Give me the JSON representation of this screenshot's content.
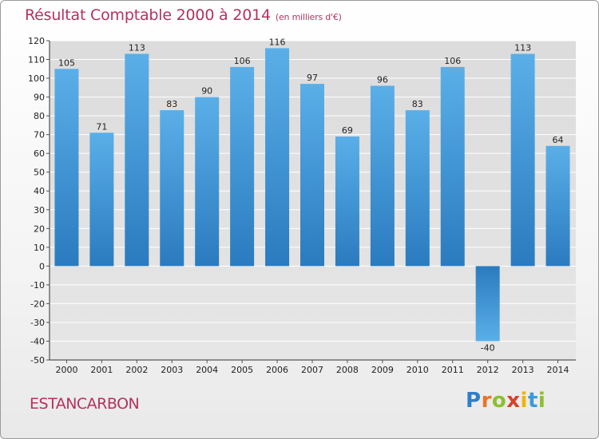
{
  "header": {
    "title": "Résultat Comptable 2000 à 2014",
    "units": "(en milliers d'€)"
  },
  "footer": {
    "commune": "ESTANCARBON",
    "logo_text": "Proxiti",
    "logo_letters": [
      "P",
      "r",
      "o",
      "x",
      "i",
      "t",
      "i"
    ]
  },
  "colors": {
    "bar_light": "#5aafe8",
    "bar_dark": "#2a7bbf",
    "title": "#b5325c",
    "grid": "#ffffff"
  },
  "chart_data": {
    "type": "bar",
    "title": "Résultat Comptable 2000 à 2014",
    "subtitle": "(en milliers d'€)",
    "xlabel": "",
    "ylabel": "",
    "categories": [
      "2000",
      "2001",
      "2002",
      "2003",
      "2004",
      "2005",
      "2006",
      "2007",
      "2008",
      "2009",
      "2010",
      "2011",
      "2012",
      "2013",
      "2014"
    ],
    "values": [
      105,
      71,
      113,
      83,
      90,
      106,
      116,
      97,
      69,
      96,
      83,
      106,
      -40,
      113,
      64
    ],
    "ylim": [
      -50,
      120
    ],
    "yticks": [
      -50,
      -40,
      -30,
      -20,
      -10,
      0,
      10,
      20,
      30,
      40,
      50,
      60,
      70,
      80,
      90,
      100,
      110,
      120
    ],
    "grid": true,
    "legend": "none"
  }
}
